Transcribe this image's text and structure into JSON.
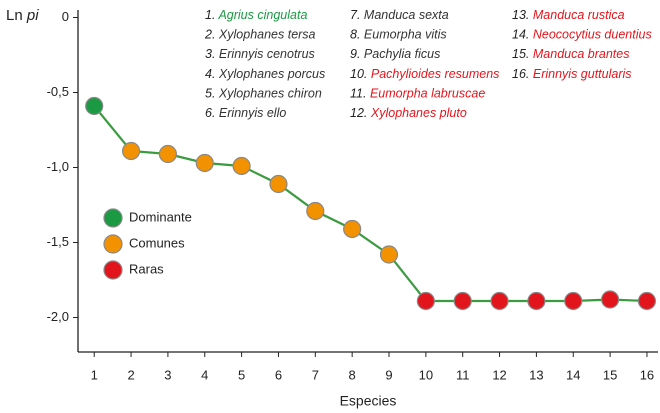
{
  "chart_data": {
    "type": "line",
    "ylabel": [
      "Ln",
      "pi"
    ],
    "xlabel": "Especies",
    "x": [
      1,
      2,
      3,
      4,
      5,
      6,
      7,
      8,
      9,
      10,
      11,
      12,
      13,
      14,
      15,
      16
    ],
    "values": [
      -0.59,
      -0.89,
      -0.91,
      -0.97,
      -0.99,
      -1.11,
      -1.29,
      -1.41,
      -1.58,
      -1.89,
      -1.89,
      -1.89,
      -1.89,
      -1.89,
      -1.88,
      -1.89
    ],
    "line_color": "#3b9b3f",
    "point_groups": [
      0,
      1,
      1,
      1,
      1,
      1,
      1,
      1,
      1,
      2,
      2,
      2,
      2,
      2,
      2,
      2
    ],
    "groups": [
      {
        "name": "Dominante",
        "color": "#1b9a43"
      },
      {
        "name": "Comunes",
        "color": "#f39200"
      },
      {
        "name": "Raras",
        "color": "#e3151c"
      }
    ],
    "species": [
      {
        "number": "1.",
        "name": "Agrius cingulata"
      },
      {
        "number": "2.",
        "name": "Xylophanes tersa"
      },
      {
        "number": "3.",
        "name": "Erinnyis cenotrus"
      },
      {
        "number": "4.",
        "name": "Xylophanes porcus"
      },
      {
        "number": "5.",
        "name": "Xylophanes chiron"
      },
      {
        "number": "6.",
        "name": "Erinnyis ello"
      },
      {
        "number": "7.",
        "name": "Manduca sexta"
      },
      {
        "number": "8.",
        "name": "Eumorpha vitis"
      },
      {
        "number": "9.",
        "name": "Pachylia ficus"
      },
      {
        "number": "10.",
        "name": "Pachylioides resumens"
      },
      {
        "number": "11.",
        "name": "Eumorpha labruscae"
      },
      {
        "number": "12.",
        "name": "Xylophanes pluto"
      },
      {
        "number": "13.",
        "name": "Manduca rustica"
      },
      {
        "number": "14.",
        "name": "Neococytius duentius"
      },
      {
        "number": "15.",
        "name": "Manduca brantes"
      },
      {
        "number": "16.",
        "name": "Erinnyis guttularis"
      }
    ],
    "species_text_colors": [
      "#1b9a43",
      "#333333",
      "#e3151c"
    ],
    "xlim": [
      0.56,
      16.3
    ],
    "xticks": [
      1,
      2,
      3,
      4,
      5,
      6,
      7,
      8,
      9,
      10,
      11,
      12,
      13,
      14,
      15,
      16
    ],
    "ylim": [
      -2.23,
      0.05
    ],
    "yticks": [
      0,
      {
        "value": -0.5,
        "label": "-0,5"
      },
      {
        "value": -1.0,
        "label": "-1,0"
      },
      {
        "value": -1.5,
        "label": "-1,5"
      },
      {
        "value": -2.0,
        "label": "-2,0"
      }
    ]
  }
}
